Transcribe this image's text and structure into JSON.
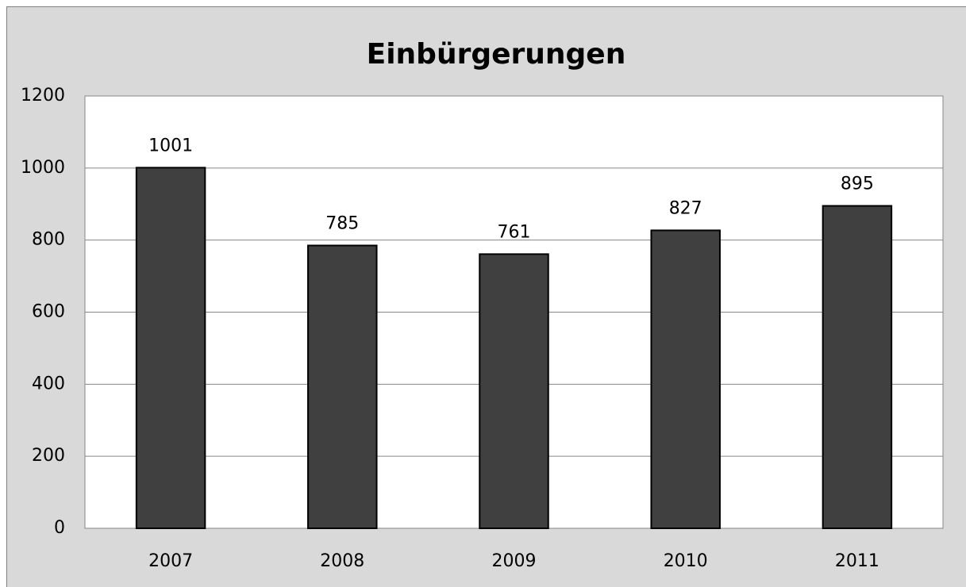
{
  "chart_data": {
    "type": "bar",
    "title": "Einbürgerungen",
    "categories": [
      "2007",
      "2008",
      "2009",
      "2010",
      "2011"
    ],
    "values": [
      1001,
      785,
      761,
      827,
      895
    ],
    "color": "#404040",
    "ylim": [
      0,
      1200
    ],
    "yticks": [
      0,
      200,
      400,
      600,
      800,
      1000,
      1200
    ],
    "grid": true
  }
}
